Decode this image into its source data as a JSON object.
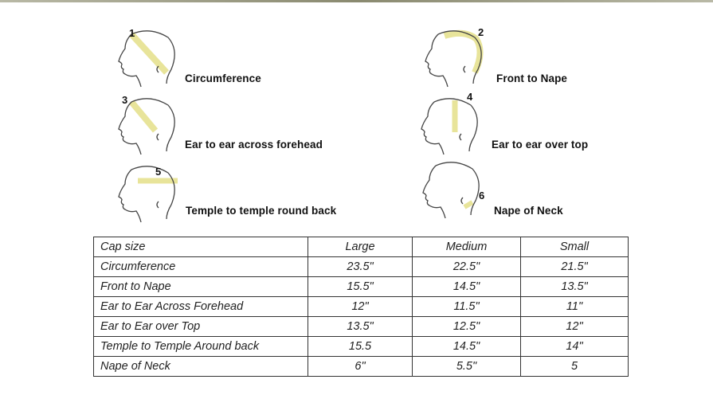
{
  "diagrams": [
    {
      "number": "1",
      "label": "Circumference"
    },
    {
      "number": "2",
      "label": "Front to Nape"
    },
    {
      "number": "3",
      "label": "Ear to ear across forehead"
    },
    {
      "number": "4",
      "label": "Ear to ear over top"
    },
    {
      "number": "5",
      "label": "Temple to temple round back"
    },
    {
      "number": "6",
      "label": "Nape of Neck"
    }
  ],
  "tape_color": "#e8e49a",
  "table": {
    "headers": [
      "Cap size",
      "Large",
      "Medium",
      "Small"
    ],
    "rows": [
      [
        "Circumference",
        "23.5\"",
        "22.5\"",
        "21.5\""
      ],
      [
        "Front to Nape",
        "15.5\"",
        "14.5\"",
        "13.5\""
      ],
      [
        "Ear to Ear Across Forehead",
        "12\"",
        "11.5\"",
        "11\""
      ],
      [
        "Ear to Ear over Top",
        "13.5\"",
        "12.5\"",
        "12\""
      ],
      [
        "Temple to Temple Around back",
        "15.5",
        "14.5\"",
        "14\""
      ],
      [
        "Nape of Neck",
        "6\"",
        "5.5\"",
        "5"
      ]
    ]
  }
}
